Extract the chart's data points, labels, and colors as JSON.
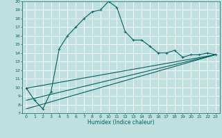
{
  "title": "",
  "xlabel": "Humidex (Indice chaleur)",
  "bg_color": "#c0e0e0",
  "grid_color": "#ffffff",
  "line_color": "#006060",
  "xlim": [
    -0.5,
    23.5
  ],
  "ylim": [
    7,
    20
  ],
  "xticks": [
    0,
    1,
    2,
    3,
    4,
    5,
    6,
    7,
    8,
    9,
    10,
    11,
    12,
    13,
    14,
    15,
    16,
    17,
    18,
    19,
    20,
    21,
    22,
    23
  ],
  "yticks": [
    7,
    8,
    9,
    10,
    11,
    12,
    13,
    14,
    15,
    16,
    17,
    18,
    19,
    20
  ],
  "series1_x": [
    0,
    1,
    2,
    3,
    4,
    5,
    6,
    7,
    8,
    9,
    10,
    11,
    12,
    13,
    14,
    15,
    16,
    17,
    18,
    19,
    20,
    21,
    22,
    23
  ],
  "series1_y": [
    9.9,
    8.5,
    7.5,
    9.5,
    14.5,
    16.0,
    17.0,
    18.0,
    18.8,
    19.0,
    20.0,
    19.3,
    16.5,
    15.5,
    15.5,
    14.8,
    14.0,
    14.0,
    14.3,
    13.5,
    13.8,
    13.8,
    14.0,
    13.8
  ],
  "series2_x": [
    0,
    23
  ],
  "series2_y": [
    9.9,
    13.8
  ],
  "series3_x": [
    0,
    23
  ],
  "series3_y": [
    7.5,
    13.8
  ],
  "series4_x": [
    0,
    23
  ],
  "series4_y": [
    8.5,
    13.8
  ]
}
